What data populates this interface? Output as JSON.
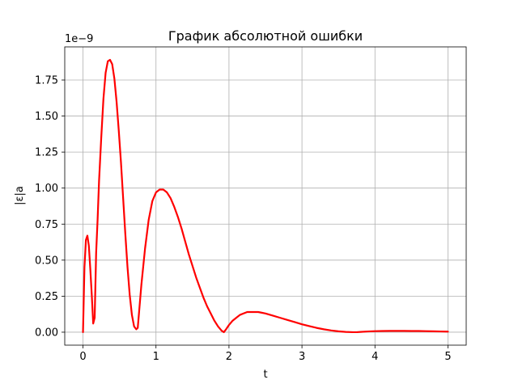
{
  "chart_data": {
    "type": "line",
    "title": "График абсолютной ошибки",
    "xlabel": "t",
    "ylabel": "|ε|a",
    "y_offset_label": "1e−9",
    "y_scale": 1e-09,
    "xlim": [
      -0.25,
      5.25
    ],
    "ylim": [
      -0.09,
      1.98
    ],
    "grid": true,
    "x_ticks": [
      0,
      1,
      2,
      3,
      4,
      5
    ],
    "x_tick_labels": [
      "0",
      "1",
      "2",
      "3",
      "4",
      "5"
    ],
    "y_ticks": [
      0,
      0.25,
      0.5,
      0.75,
      1.0,
      1.25,
      1.5,
      1.75
    ],
    "y_tick_labels": [
      "0.00",
      "0.25",
      "0.50",
      "0.75",
      "1.00",
      "1.25",
      "1.50",
      "1.75"
    ],
    "series": [
      {
        "color": "#ff0000",
        "x": [
          0,
          0.02,
          0.04,
          0.06,
          0.08,
          0.1,
          0.12,
          0.14,
          0.16,
          0.18,
          0.2,
          0.22,
          0.25,
          0.28,
          0.31,
          0.34,
          0.37,
          0.4,
          0.43,
          0.46,
          0.49,
          0.52,
          0.55,
          0.58,
          0.61,
          0.64,
          0.67,
          0.7,
          0.73,
          0.75,
          0.77,
          0.8,
          0.85,
          0.9,
          0.95,
          1.0,
          1.05,
          1.1,
          1.15,
          1.2,
          1.25,
          1.3,
          1.35,
          1.4,
          1.45,
          1.5,
          1.55,
          1.6,
          1.65,
          1.7,
          1.75,
          1.8,
          1.85,
          1.9,
          1.93,
          1.96,
          2.0,
          2.05,
          2.1,
          2.15,
          2.2,
          2.25,
          2.3,
          2.35,
          2.4,
          2.45,
          2.5,
          2.6,
          2.7,
          2.8,
          2.9,
          3.0,
          3.1,
          3.2,
          3.3,
          3.4,
          3.5,
          3.6,
          3.7,
          3.75,
          3.8,
          3.9,
          4.0,
          4.1,
          4.2,
          4.3,
          4.4,
          4.5,
          4.6,
          4.7,
          4.8,
          4.9,
          5.0
        ],
        "y": [
          0,
          0.45,
          0.64,
          0.67,
          0.6,
          0.44,
          0.26,
          0.06,
          0.1,
          0.55,
          0.78,
          1.05,
          1.35,
          1.62,
          1.8,
          1.88,
          1.89,
          1.86,
          1.76,
          1.6,
          1.4,
          1.18,
          0.93,
          0.68,
          0.45,
          0.26,
          0.12,
          0.04,
          0.02,
          0.03,
          0.15,
          0.33,
          0.58,
          0.78,
          0.91,
          0.97,
          0.99,
          0.99,
          0.97,
          0.93,
          0.87,
          0.8,
          0.72,
          0.63,
          0.54,
          0.46,
          0.38,
          0.31,
          0.24,
          0.18,
          0.13,
          0.08,
          0.04,
          0.01,
          0.0,
          0.02,
          0.05,
          0.08,
          0.1,
          0.12,
          0.13,
          0.14,
          0.14,
          0.14,
          0.14,
          0.135,
          0.13,
          0.115,
          0.1,
          0.085,
          0.07,
          0.055,
          0.042,
          0.03,
          0.02,
          0.012,
          0.006,
          0.002,
          0.0,
          0.0,
          0.002,
          0.005,
          0.007,
          0.008,
          0.009,
          0.009,
          0.009,
          0.008,
          0.008,
          0.007,
          0.006,
          0.005,
          0.004
        ]
      }
    ]
  }
}
